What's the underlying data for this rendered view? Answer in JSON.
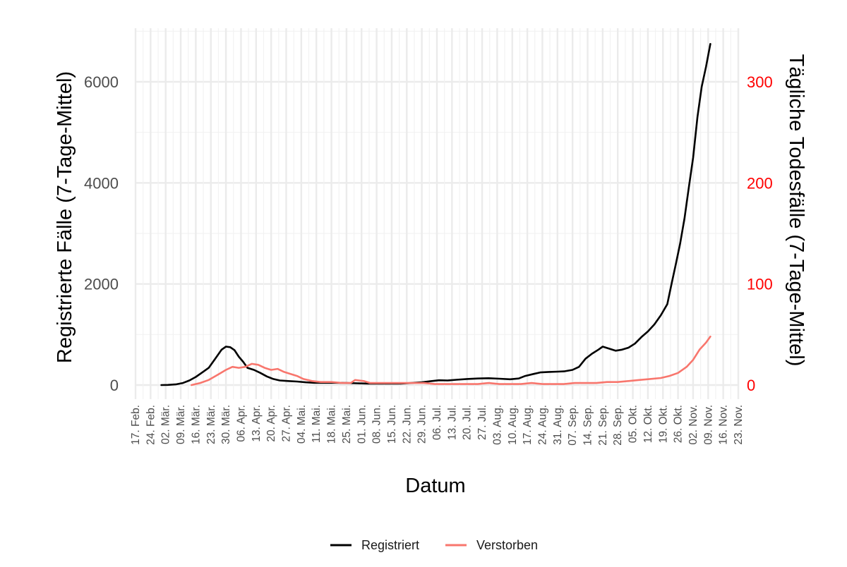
{
  "chart_data": {
    "type": "line",
    "title": "",
    "xlabel": "Datum",
    "ylabel_left": "Registrierte Fälle (7-Tage-Mittel)",
    "ylabel_right": "Tägliche Todesfälle (7-Tage-Mittel)",
    "ylim_left": [
      0,
      7000
    ],
    "ylim_right": [
      0,
      350
    ],
    "yticks_left": [
      0,
      2000,
      4000,
      6000
    ],
    "yticks_left_labels": [
      "0",
      "2000",
      "4000",
      "6000"
    ],
    "yticks_right": [
      0,
      100,
      200,
      300
    ],
    "yticks_right_labels": [
      "0",
      "100",
      "200",
      "300"
    ],
    "right_axis_color": "#ff0000",
    "grid": true,
    "legend_position": "bottom",
    "x_ticks": [
      {
        "date": "2020-02-17",
        "label": "17. Feb."
      },
      {
        "date": "2020-02-24",
        "label": "24. Feb."
      },
      {
        "date": "2020-03-02",
        "label": "02. Mär."
      },
      {
        "date": "2020-03-09",
        "label": "09. Mär."
      },
      {
        "date": "2020-03-16",
        "label": "16. Mär."
      },
      {
        "date": "2020-03-23",
        "label": "23. Mär."
      },
      {
        "date": "2020-03-30",
        "label": "30. Mär."
      },
      {
        "date": "2020-04-06",
        "label": "06. Apr."
      },
      {
        "date": "2020-04-13",
        "label": "13. Apr."
      },
      {
        "date": "2020-04-20",
        "label": "20. Apr."
      },
      {
        "date": "2020-04-27",
        "label": "27. Apr."
      },
      {
        "date": "2020-05-04",
        "label": "04. Mai."
      },
      {
        "date": "2020-05-11",
        "label": "11. Mai."
      },
      {
        "date": "2020-05-18",
        "label": "18. Mai."
      },
      {
        "date": "2020-05-25",
        "label": "25. Mai."
      },
      {
        "date": "2020-06-01",
        "label": "01. Jun."
      },
      {
        "date": "2020-06-08",
        "label": "08. Jun."
      },
      {
        "date": "2020-06-15",
        "label": "15. Jun."
      },
      {
        "date": "2020-06-22",
        "label": "22. Jun."
      },
      {
        "date": "2020-06-29",
        "label": "29. Jun."
      },
      {
        "date": "2020-07-06",
        "label": "06. Jul."
      },
      {
        "date": "2020-07-13",
        "label": "13. Jul."
      },
      {
        "date": "2020-07-20",
        "label": "20. Jul."
      },
      {
        "date": "2020-07-27",
        "label": "27. Jul."
      },
      {
        "date": "2020-08-03",
        "label": "03. Aug."
      },
      {
        "date": "2020-08-10",
        "label": "10. Aug."
      },
      {
        "date": "2020-08-17",
        "label": "17. Aug."
      },
      {
        "date": "2020-08-24",
        "label": "24. Aug."
      },
      {
        "date": "2020-08-31",
        "label": "31. Aug."
      },
      {
        "date": "2020-09-07",
        "label": "07. Sep."
      },
      {
        "date": "2020-09-14",
        "label": "14. Sep."
      },
      {
        "date": "2020-09-21",
        "label": "21. Sep."
      },
      {
        "date": "2020-09-28",
        "label": "28. Sep."
      },
      {
        "date": "2020-10-05",
        "label": "05. Okt."
      },
      {
        "date": "2020-10-12",
        "label": "12. Okt."
      },
      {
        "date": "2020-10-19",
        "label": "19. Okt."
      },
      {
        "date": "2020-10-26",
        "label": "26. Okt."
      },
      {
        "date": "2020-11-02",
        "label": "02. Nov."
      },
      {
        "date": "2020-11-09",
        "label": "09. Nov."
      },
      {
        "date": "2020-11-16",
        "label": "16. Nov."
      },
      {
        "date": "2020-11-23",
        "label": "23. Nov."
      }
    ],
    "series": [
      {
        "name": "Registriert",
        "axis": "left",
        "color": "#000000",
        "points": [
          [
            "2020-02-29",
            0
          ],
          [
            "2020-03-03",
            3
          ],
          [
            "2020-03-07",
            15
          ],
          [
            "2020-03-10",
            40
          ],
          [
            "2020-03-13",
            90
          ],
          [
            "2020-03-16",
            160
          ],
          [
            "2020-03-19",
            250
          ],
          [
            "2020-03-22",
            340
          ],
          [
            "2020-03-25",
            520
          ],
          [
            "2020-03-28",
            700
          ],
          [
            "2020-03-30",
            760
          ],
          [
            "2020-04-01",
            750
          ],
          [
            "2020-04-03",
            690
          ],
          [
            "2020-04-05",
            560
          ],
          [
            "2020-04-07",
            460
          ],
          [
            "2020-04-09",
            340
          ],
          [
            "2020-04-12",
            300
          ],
          [
            "2020-04-15",
            240
          ],
          [
            "2020-04-18",
            170
          ],
          [
            "2020-04-21",
            120
          ],
          [
            "2020-04-24",
            90
          ],
          [
            "2020-04-28",
            80
          ],
          [
            "2020-05-02",
            70
          ],
          [
            "2020-05-06",
            55
          ],
          [
            "2020-05-10",
            45
          ],
          [
            "2020-05-15",
            45
          ],
          [
            "2020-05-20",
            45
          ],
          [
            "2020-05-25",
            40
          ],
          [
            "2020-05-30",
            35
          ],
          [
            "2020-06-04",
            30
          ],
          [
            "2020-06-09",
            28
          ],
          [
            "2020-06-14",
            28
          ],
          [
            "2020-06-19",
            30
          ],
          [
            "2020-06-24",
            40
          ],
          [
            "2020-06-29",
            55
          ],
          [
            "2020-07-03",
            75
          ],
          [
            "2020-07-07",
            95
          ],
          [
            "2020-07-11",
            90
          ],
          [
            "2020-07-15",
            105
          ],
          [
            "2020-07-20",
            120
          ],
          [
            "2020-07-25",
            130
          ],
          [
            "2020-07-30",
            135
          ],
          [
            "2020-08-04",
            125
          ],
          [
            "2020-08-09",
            115
          ],
          [
            "2020-08-13",
            130
          ],
          [
            "2020-08-16",
            180
          ],
          [
            "2020-08-20",
            220
          ],
          [
            "2020-08-23",
            250
          ],
          [
            "2020-08-27",
            260
          ],
          [
            "2020-08-31",
            265
          ],
          [
            "2020-09-03",
            270
          ],
          [
            "2020-09-07",
            300
          ],
          [
            "2020-09-10",
            360
          ],
          [
            "2020-09-13",
            520
          ],
          [
            "2020-09-16",
            620
          ],
          [
            "2020-09-19",
            700
          ],
          [
            "2020-09-21",
            760
          ],
          [
            "2020-09-24",
            720
          ],
          [
            "2020-09-27",
            680
          ],
          [
            "2020-09-30",
            700
          ],
          [
            "2020-10-03",
            740
          ],
          [
            "2020-10-06",
            820
          ],
          [
            "2020-10-09",
            950
          ],
          [
            "2020-10-12",
            1060
          ],
          [
            "2020-10-15",
            1200
          ],
          [
            "2020-10-18",
            1380
          ],
          [
            "2020-10-21",
            1600
          ],
          [
            "2020-10-23",
            2000
          ],
          [
            "2020-10-25",
            2400
          ],
          [
            "2020-10-27",
            2800
          ],
          [
            "2020-10-29",
            3300
          ],
          [
            "2020-10-31",
            3900
          ],
          [
            "2020-11-02",
            4500
          ],
          [
            "2020-11-04",
            5300
          ],
          [
            "2020-11-06",
            5900
          ],
          [
            "2020-11-08",
            6300
          ],
          [
            "2020-11-10",
            6750
          ]
        ]
      },
      {
        "name": "Verstorben",
        "axis": "right",
        "color": "#f8766d",
        "points": [
          [
            "2020-03-14",
            0
          ],
          [
            "2020-03-18",
            2
          ],
          [
            "2020-03-22",
            5
          ],
          [
            "2020-03-26",
            10
          ],
          [
            "2020-03-30",
            15
          ],
          [
            "2020-04-02",
            18
          ],
          [
            "2020-04-05",
            17
          ],
          [
            "2020-04-08",
            18
          ],
          [
            "2020-04-11",
            21
          ],
          [
            "2020-04-14",
            20
          ],
          [
            "2020-04-17",
            17
          ],
          [
            "2020-04-20",
            15
          ],
          [
            "2020-04-23",
            16
          ],
          [
            "2020-04-26",
            13
          ],
          [
            "2020-04-29",
            11
          ],
          [
            "2020-05-02",
            9
          ],
          [
            "2020-05-05",
            6
          ],
          [
            "2020-05-09",
            4
          ],
          [
            "2020-05-13",
            3
          ],
          [
            "2020-05-18",
            3
          ],
          [
            "2020-05-23",
            2
          ],
          [
            "2020-05-27",
            2
          ],
          [
            "2020-05-29",
            5
          ],
          [
            "2020-06-02",
            4
          ],
          [
            "2020-06-05",
            2
          ],
          [
            "2020-06-10",
            2
          ],
          [
            "2020-06-15",
            2
          ],
          [
            "2020-06-20",
            2
          ],
          [
            "2020-06-25",
            2
          ],
          [
            "2020-06-30",
            2
          ],
          [
            "2020-07-05",
            1
          ],
          [
            "2020-07-10",
            1
          ],
          [
            "2020-07-15",
            1
          ],
          [
            "2020-07-20",
            1
          ],
          [
            "2020-07-25",
            1
          ],
          [
            "2020-07-30",
            2
          ],
          [
            "2020-08-04",
            1
          ],
          [
            "2020-08-09",
            1
          ],
          [
            "2020-08-14",
            1
          ],
          [
            "2020-08-19",
            2
          ],
          [
            "2020-08-24",
            1
          ],
          [
            "2020-08-29",
            1
          ],
          [
            "2020-09-03",
            1
          ],
          [
            "2020-09-08",
            2
          ],
          [
            "2020-09-13",
            2
          ],
          [
            "2020-09-18",
            2
          ],
          [
            "2020-09-23",
            3
          ],
          [
            "2020-09-28",
            3
          ],
          [
            "2020-10-03",
            4
          ],
          [
            "2020-10-08",
            5
          ],
          [
            "2020-10-13",
            6
          ],
          [
            "2020-10-18",
            7
          ],
          [
            "2020-10-22",
            9
          ],
          [
            "2020-10-26",
            12
          ],
          [
            "2020-10-30",
            18
          ],
          [
            "2020-11-02",
            25
          ],
          [
            "2020-11-05",
            35
          ],
          [
            "2020-11-08",
            42
          ],
          [
            "2020-11-10",
            48
          ]
        ]
      }
    ]
  }
}
